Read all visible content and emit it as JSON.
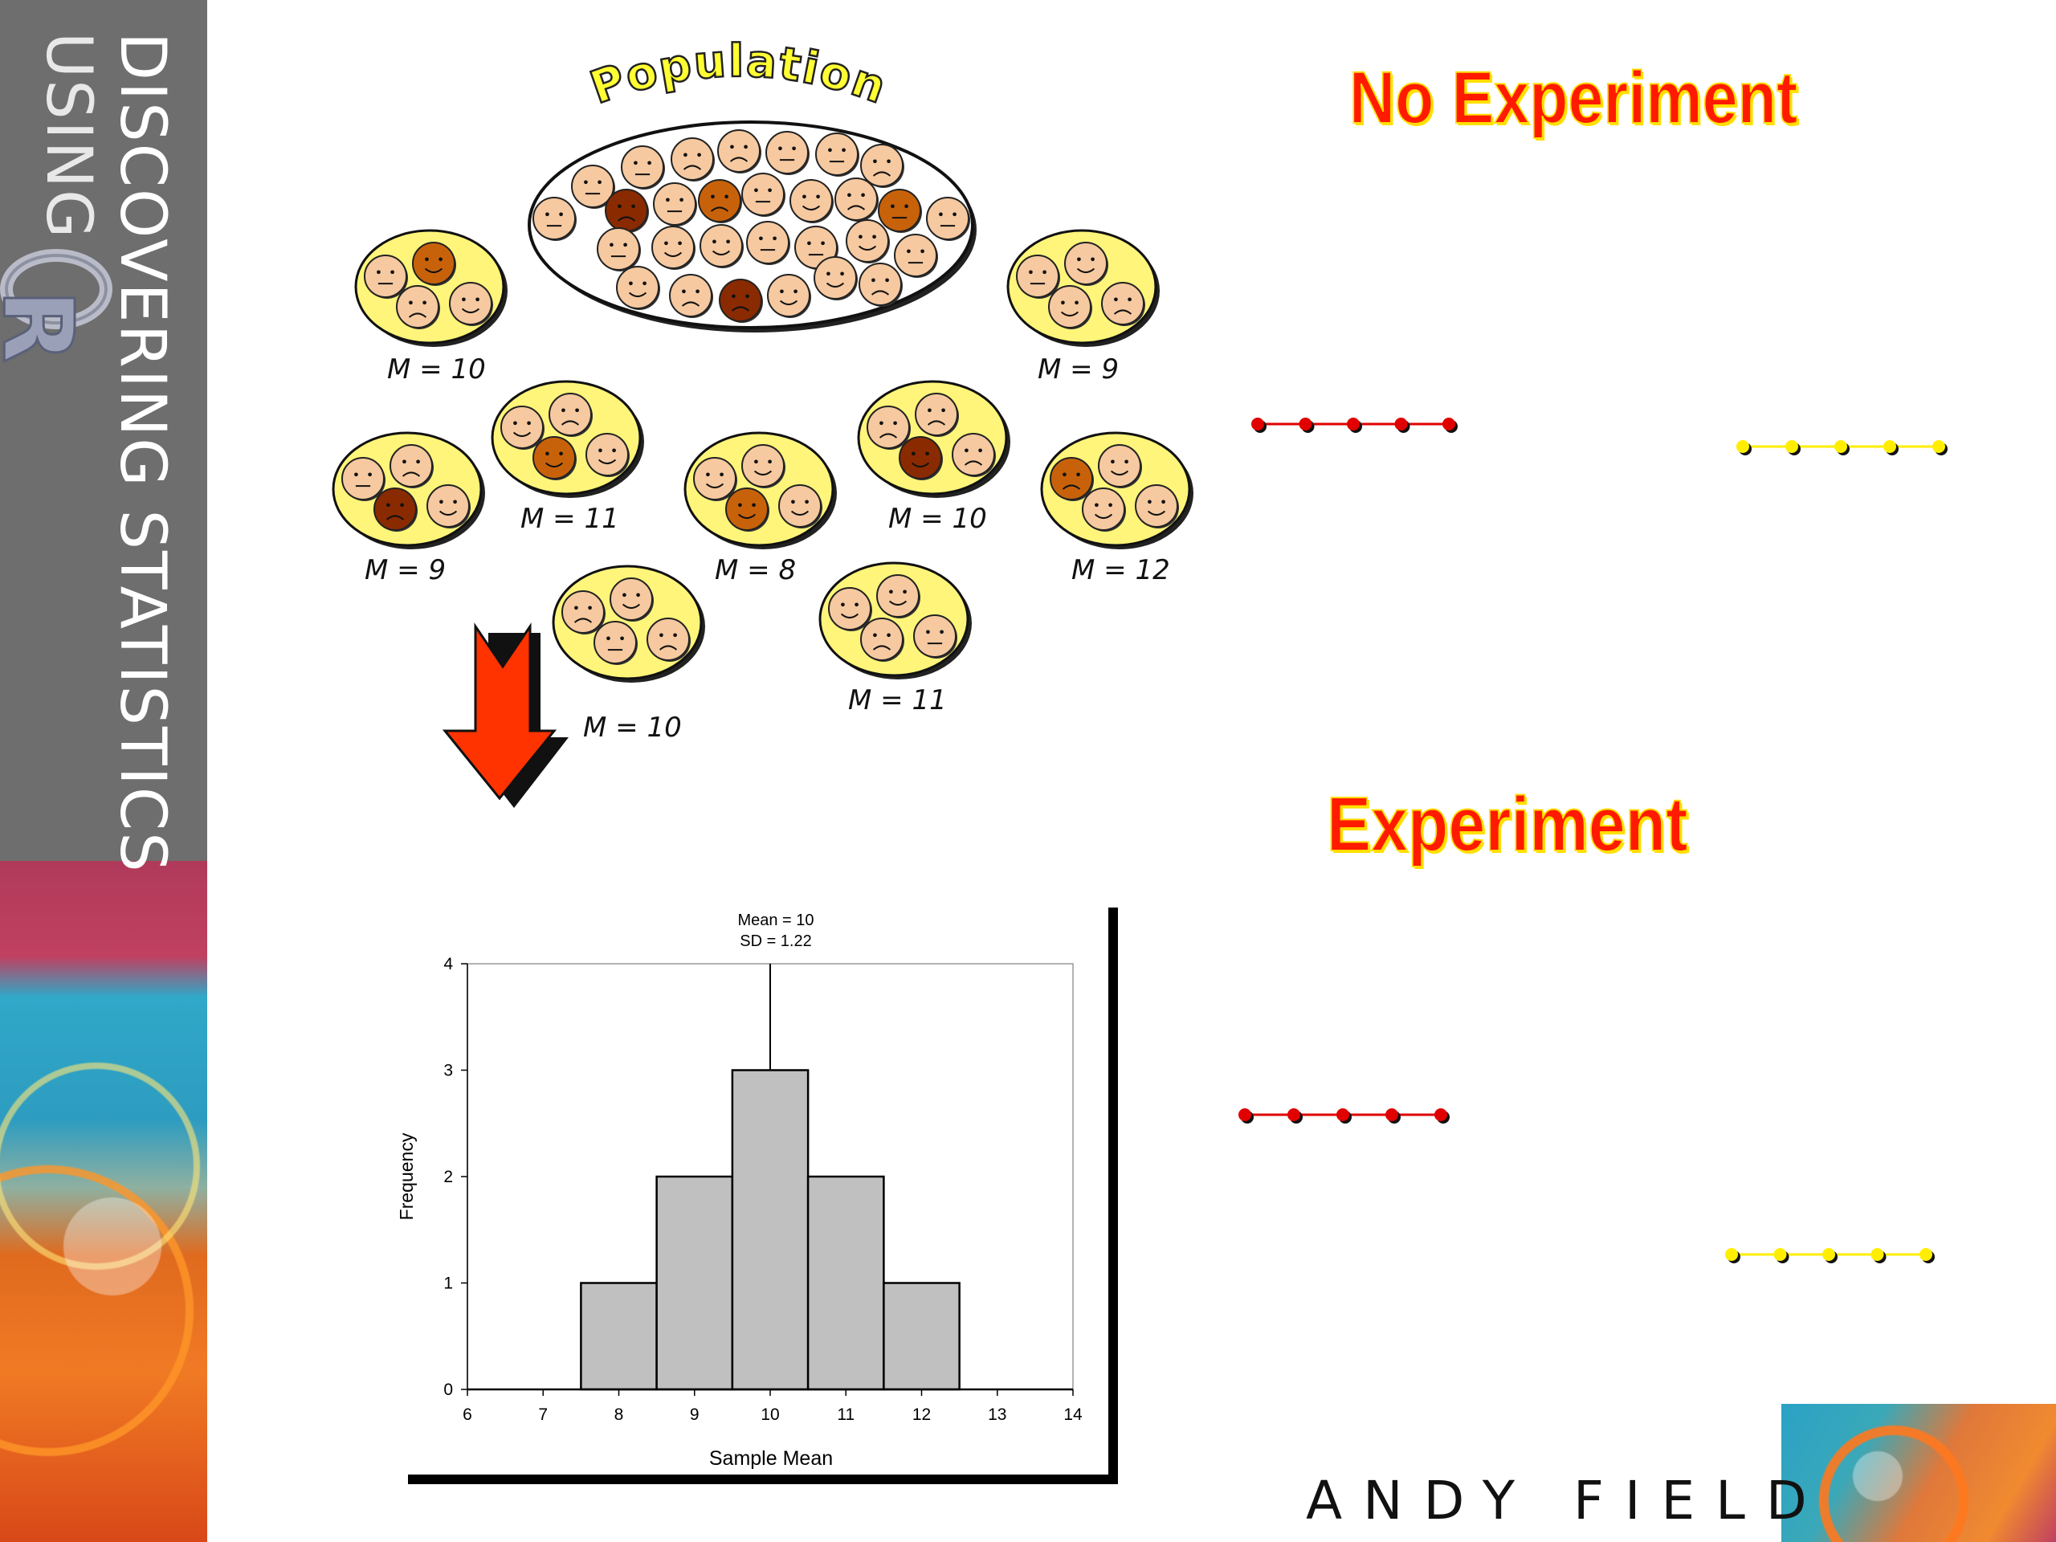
{
  "banner": {
    "title_line1": "DISCOVERING STATISTICS",
    "title_line2": "USING",
    "logo_letter": "R"
  },
  "population": {
    "title": "Population",
    "samples": [
      {
        "label": "M = 10"
      },
      {
        "label": "M = 9"
      },
      {
        "label": "M = 11"
      },
      {
        "label": "M = 10"
      },
      {
        "label": "M = 9"
      },
      {
        "label": "M = 8"
      },
      {
        "label": "M = 12"
      },
      {
        "label": "M = 10"
      },
      {
        "label": "M = 11"
      }
    ]
  },
  "titles": {
    "no_experiment": "No Experiment",
    "experiment": "Experiment"
  },
  "colors": {
    "title_red": "#ff1a00",
    "title_outline": "#ffdd00",
    "red_dots": "#e00000",
    "yellow_dots": "#ffee00",
    "bar_fill": "#c0c0c0",
    "arrow": "#ff3300",
    "face_light": "#f6c9a0",
    "face_mid": "#c8620a",
    "face_dark": "#8a2a00",
    "sample_fill": "#fff57a"
  },
  "chart_data": {
    "type": "bar",
    "annotation_mean": "Mean = 10",
    "annotation_sd": "SD = 1.22",
    "xlabel": "Sample Mean",
    "ylabel": "Frequency",
    "x_ticks": [
      "6",
      "7",
      "8",
      "9",
      "10",
      "11",
      "12",
      "13",
      "14"
    ],
    "y_ticks": [
      "0",
      "1",
      "2",
      "3",
      "4"
    ],
    "xlim": [
      6,
      14
    ],
    "ylim": [
      0,
      4
    ],
    "bins": [
      {
        "x": 8,
        "value": 1
      },
      {
        "x": 9,
        "value": 2
      },
      {
        "x": 10,
        "value": 3
      },
      {
        "x": 11,
        "value": 2
      },
      {
        "x": 12,
        "value": 1
      }
    ],
    "mean": 10,
    "grid": false,
    "legend": "none"
  },
  "author": "ANDY FIELD"
}
